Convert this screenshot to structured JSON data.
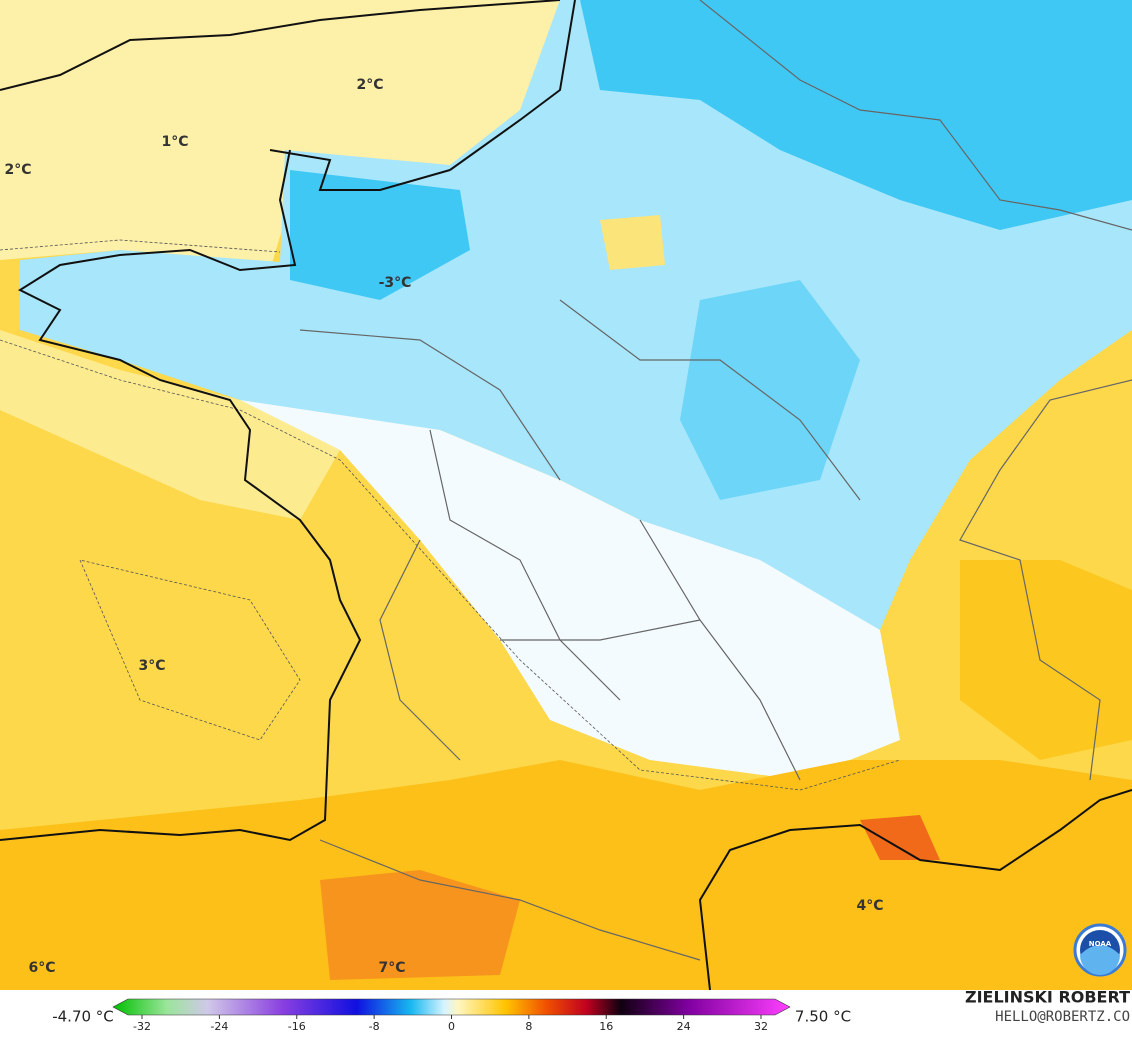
{
  "map_labels": [
    "2°C",
    "1°C",
    "2°C",
    "-3°C",
    "3°C",
    "4°C",
    "6°C",
    "7°C"
  ],
  "colorbar": {
    "min_label": "-4.70 °C",
    "max_label": "7.50 °C",
    "lim": [
      -35,
      35
    ],
    "ticks": [
      -32,
      -24,
      -16,
      -8,
      0,
      8,
      16,
      24,
      32
    ]
  },
  "credit": {
    "name": "ZIELINSKI ROBERT",
    "email": "HELLO@ROBERTZ.CO"
  },
  "logo": "NOAA"
}
